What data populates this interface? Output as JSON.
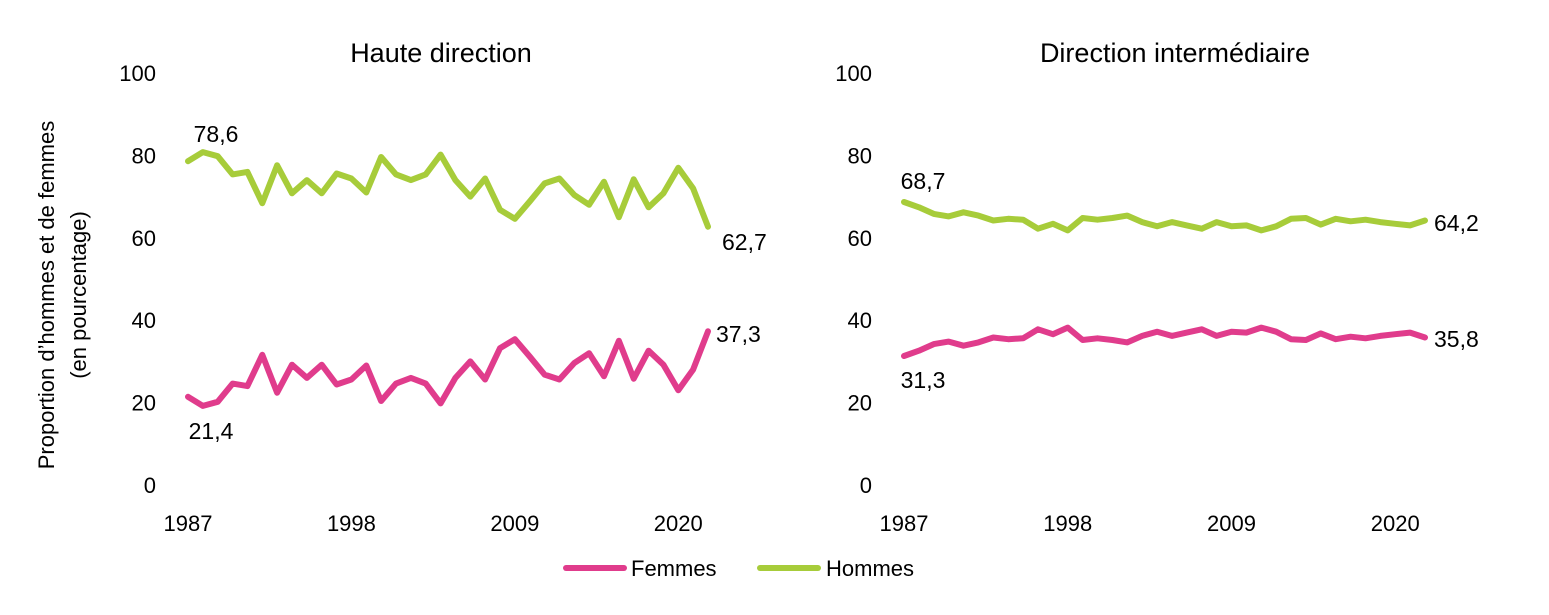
{
  "shared": {
    "ylabel_lines": [
      "Proportion d’hommes et de femmes",
      "(en pourcentage)"
    ],
    "legend": [
      {
        "name": "Femmes",
        "color": "#e03c8c"
      },
      {
        "name": "Hommes",
        "color": "#a7cc3a"
      }
    ]
  },
  "chart_data": [
    {
      "type": "line",
      "title": "Haute direction",
      "xlim": [
        1987,
        2022
      ],
      "ylim": [
        0,
        100
      ],
      "yticks": [
        0,
        20,
        40,
        60,
        80,
        100
      ],
      "xticks": [
        1987,
        1998,
        2009,
        2020
      ],
      "x": [
        1987,
        1988,
        1989,
        1990,
        1991,
        1992,
        1993,
        1994,
        1995,
        1996,
        1997,
        1998,
        1999,
        2000,
        2001,
        2002,
        2003,
        2004,
        2005,
        2006,
        2007,
        2008,
        2009,
        2010,
        2011,
        2012,
        2013,
        2014,
        2015,
        2016,
        2017,
        2018,
        2019,
        2020,
        2021,
        2022
      ],
      "series": [
        {
          "name": "Femmes",
          "color": "#e03c8c",
          "values": [
            21.4,
            19.2,
            20.2,
            24.6,
            24.0,
            31.6,
            22.4,
            29.2,
            26.0,
            29.2,
            24.4,
            25.6,
            29.0,
            20.4,
            24.6,
            26.0,
            24.6,
            19.8,
            26.0,
            30.0,
            25.6,
            33.2,
            35.4,
            31.2,
            26.8,
            25.6,
            29.6,
            32.0,
            26.4,
            35.0,
            25.8,
            32.6,
            29.2,
            23.0,
            28.0,
            37.3
          ]
        },
        {
          "name": "Hommes",
          "color": "#a7cc3a",
          "values": [
            78.6,
            80.8,
            79.8,
            75.4,
            76.0,
            68.4,
            77.6,
            70.8,
            74.0,
            70.8,
            75.6,
            74.4,
            71.0,
            79.6,
            75.4,
            74.0,
            75.4,
            80.2,
            74.0,
            70.0,
            74.4,
            66.8,
            64.6,
            68.8,
            73.2,
            74.4,
            70.4,
            68.0,
            73.6,
            65.0,
            74.2,
            67.4,
            70.8,
            77.0,
            72.0,
            62.7
          ]
        }
      ],
      "annotations": [
        {
          "text": "78,6",
          "series": "Hommes",
          "x": 1987
        },
        {
          "text": "21,4",
          "series": "Femmes",
          "x": 1987
        },
        {
          "text": "62,7",
          "series": "Hommes",
          "x": 2022
        },
        {
          "text": "37,3",
          "series": "Femmes",
          "x": 2022
        }
      ]
    },
    {
      "type": "line",
      "title": "Direction intermédiaire",
      "xlim": [
        1987,
        2022
      ],
      "ylim": [
        0,
        100
      ],
      "yticks": [
        0,
        20,
        40,
        60,
        80,
        100
      ],
      "xticks": [
        1987,
        1998,
        2009,
        2020
      ],
      "x": [
        1987,
        1988,
        1989,
        1990,
        1991,
        1992,
        1993,
        1994,
        1995,
        1996,
        1997,
        1998,
        1999,
        2000,
        2001,
        2002,
        2003,
        2004,
        2005,
        2006,
        2007,
        2008,
        2009,
        2010,
        2011,
        2012,
        2013,
        2014,
        2015,
        2016,
        2017,
        2018,
        2019,
        2020,
        2021,
        2022
      ],
      "series": [
        {
          "name": "Femmes",
          "color": "#e03c8c",
          "values": [
            31.3,
            32.6,
            34.2,
            34.8,
            33.8,
            34.6,
            35.8,
            35.4,
            35.6,
            37.8,
            36.6,
            38.2,
            35.2,
            35.6,
            35.2,
            34.6,
            36.2,
            37.2,
            36.2,
            37.0,
            37.8,
            36.2,
            37.2,
            37.0,
            38.2,
            37.2,
            35.4,
            35.2,
            36.8,
            35.4,
            36.0,
            35.6,
            36.2,
            36.6,
            37.0,
            35.8
          ]
        },
        {
          "name": "Hommes",
          "color": "#a7cc3a",
          "values": [
            68.7,
            67.4,
            65.8,
            65.2,
            66.2,
            65.4,
            64.2,
            64.6,
            64.4,
            62.2,
            63.4,
            61.8,
            64.8,
            64.4,
            64.8,
            65.4,
            63.8,
            62.8,
            63.8,
            63.0,
            62.2,
            63.8,
            62.8,
            63.0,
            61.8,
            62.8,
            64.6,
            64.8,
            63.2,
            64.6,
            64.0,
            64.4,
            63.8,
            63.4,
            63.0,
            64.2
          ]
        }
      ],
      "annotations": [
        {
          "text": "68,7",
          "series": "Hommes",
          "x": 1987
        },
        {
          "text": "31,3",
          "series": "Femmes",
          "x": 1987
        },
        {
          "text": "64,2",
          "series": "Hommes",
          "x": 2022
        },
        {
          "text": "35,8",
          "series": "Femmes",
          "x": 2022
        }
      ]
    }
  ]
}
